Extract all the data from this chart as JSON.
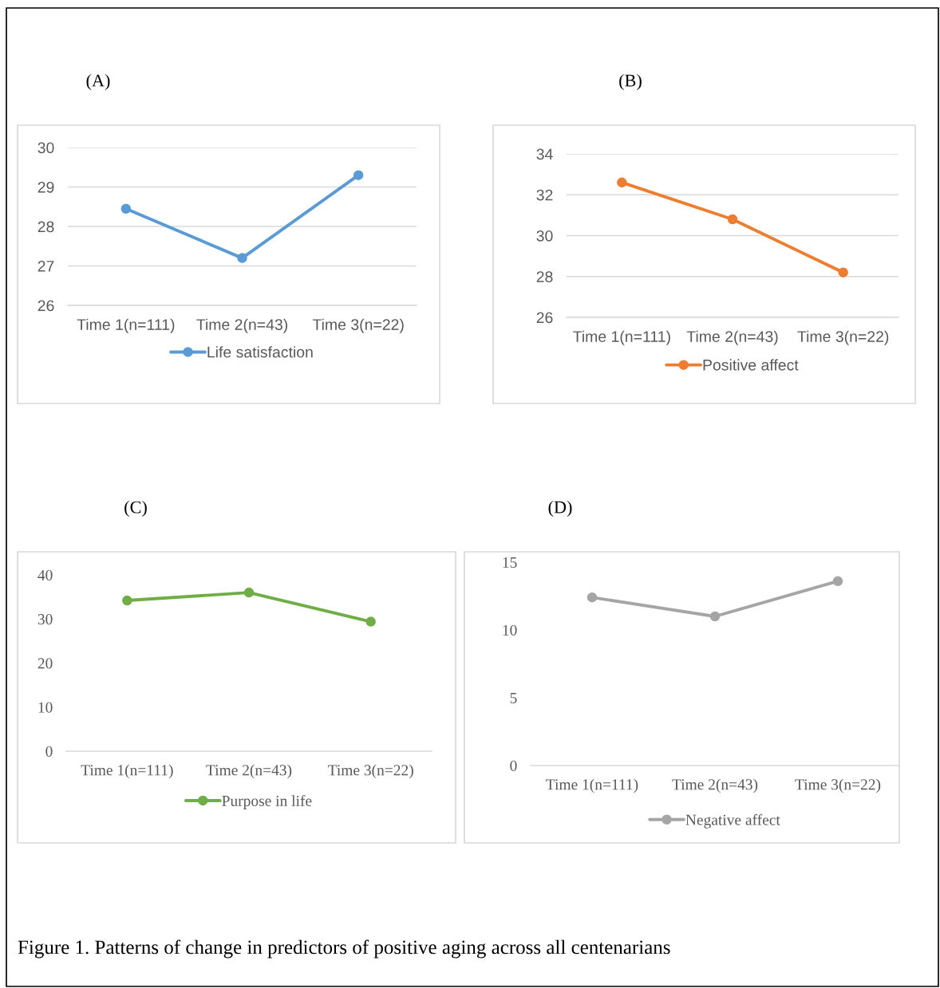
{
  "chart_data": [
    {
      "type": "line",
      "title": "(A)",
      "categories": [
        "Time 1(n=111)",
        "Time 2(n=43)",
        "Time 3(n=22)"
      ],
      "series": [
        {
          "name": "Life satisfaction",
          "color": "#5b9bd5",
          "values": [
            28.45,
            27.2,
            29.3
          ]
        }
      ],
      "ylim": [
        26,
        30
      ],
      "yticks": [
        26,
        27,
        28,
        29,
        30
      ],
      "grid": "y",
      "legend": "bottom",
      "marker": "circle",
      "line_style": "solid"
    },
    {
      "type": "line",
      "title": "(B)",
      "categories": [
        "Time 1(n=111)",
        "Time 2(n=43)",
        "Time 3(n=22)"
      ],
      "series": [
        {
          "name": "Positive affect",
          "color": "#ed7d31",
          "values": [
            32.6,
            30.8,
            28.2
          ]
        }
      ],
      "ylim": [
        26,
        34
      ],
      "yticks": [
        26,
        28,
        30,
        32,
        34
      ],
      "grid": "y",
      "legend": "bottom",
      "marker": "circle",
      "line_style": "solid"
    },
    {
      "type": "line",
      "title": "(C)",
      "categories": [
        "Time 1(n=111)",
        "Time 2(n=43)",
        "Time 3(n=22)"
      ],
      "series": [
        {
          "name": "Purpose in life",
          "color": "#70ad47",
          "values": [
            34.2,
            36.0,
            29.4
          ]
        }
      ],
      "ylim": [
        0,
        40
      ],
      "yticks": [
        0,
        10,
        20,
        30,
        40
      ],
      "legend": "bottom",
      "marker": "circle",
      "line_style": "solid"
    },
    {
      "type": "line",
      "title": "(D)",
      "categories": [
        "Time 1(n=111)",
        "Time 2(n=43)",
        "Time 3(n=22)"
      ],
      "series": [
        {
          "name": "Negative affect",
          "color": "#a5a5a5",
          "values": [
            12.4,
            11.0,
            13.6
          ]
        }
      ],
      "ylim": [
        0,
        15
      ],
      "yticks": [
        0,
        5,
        10,
        15
      ],
      "legend": "bottom",
      "marker": "circle",
      "line_style": "solid",
      "annotations": [
        "Figure 1. Patterns of change in predictors of positive aging across all centenarians"
      ]
    }
  ]
}
